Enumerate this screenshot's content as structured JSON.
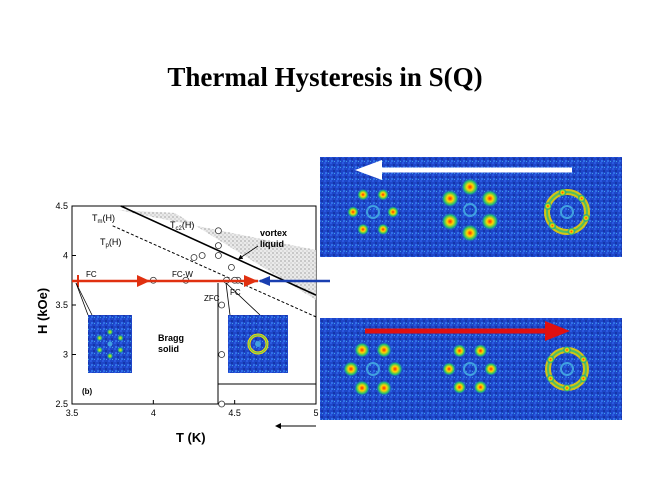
{
  "slide": {
    "title": "Thermal Hysteresis in S(Q)"
  },
  "plot": {
    "panel_label": "(b)",
    "xlabel": "T (K)",
    "ylabel": "H (kOe)",
    "x_ticks": [
      "3.5",
      "4",
      "4.5",
      "5"
    ],
    "y_ticks": [
      "2.5",
      "3",
      "3.5",
      "4",
      "4.5"
    ],
    "labels": {
      "tm": "T",
      "tm_sub": "m",
      "tm_suffix": "(H)",
      "tp": "T",
      "tp_sub": "p",
      "tp_suffix": "(H)",
      "tc2": "T",
      "tc2_sub": "c2",
      "tc2_suffix": "(H)",
      "vortex_liquid": [
        "vortex",
        "liquid"
      ],
      "bragg_solid": [
        "Bragg",
        "solid"
      ],
      "fc_left": "FC",
      "fc_w": "FC-W",
      "fc_right": "FC",
      "zfc": "ZFC"
    },
    "colors": {
      "heat_arrow": "#e03010",
      "cool_arrow": "#1a3fb0"
    }
  },
  "chart_data": {
    "type": "scatter",
    "xlabel": "T (K)",
    "ylabel": "H (kOe)",
    "xlim": [
      3.5,
      5
    ],
    "ylim": [
      2.5,
      4.5
    ],
    "series": [
      {
        "values": [
          {
            "x": 4.4,
            "y": 4.25
          },
          {
            "x": 4.4,
            "y": 4.1
          },
          {
            "x": 4.4,
            "y": 4.0
          },
          {
            "x": 4.25,
            "y": 3.98
          },
          {
            "x": 4.3,
            "y": 4.0
          },
          {
            "x": 4.48,
            "y": 3.88
          },
          {
            "x": 4.52,
            "y": 3.75
          },
          {
            "x": 4.42,
            "y": 3.5
          },
          {
            "x": 4.42,
            "y": 3.0
          },
          {
            "x": 4.42,
            "y": 2.5
          },
          {
            "x": 4.0,
            "y": 3.75
          },
          {
            "x": 4.2,
            "y": 3.75
          },
          {
            "x": 4.45,
            "y": 3.75
          },
          {
            "x": 4.5,
            "y": 3.75
          }
        ]
      }
    ],
    "lines": [
      {
        "label": "T",
        "points": [
          [
            3.8,
            4.5
          ],
          [
            5.0,
            3.6
          ]
        ]
      },
      {
        "label": "T",
        "points": [
          [
            3.75,
            4.3
          ],
          [
            5.0,
            3.38
          ]
        ]
      }
    ]
  },
  "images": {
    "top_arrow_color": "#ffffff",
    "bottom_arrow_color": "#e01010"
  }
}
